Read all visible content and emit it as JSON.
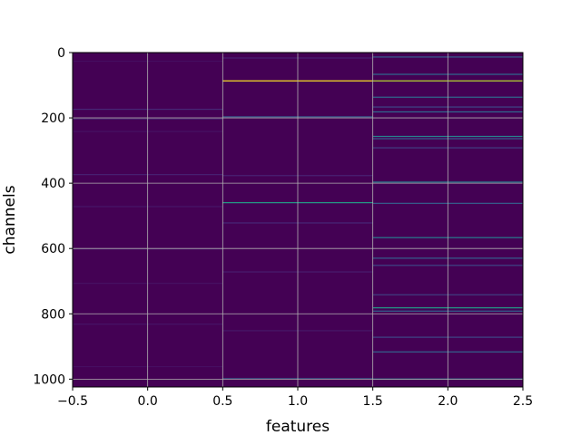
{
  "chart_data": {
    "type": "heatmap",
    "title": "",
    "xlabel": "features",
    "ylabel": "channels",
    "x_columns": [
      0,
      1,
      2
    ],
    "xlim": [
      -0.5,
      2.5
    ],
    "ylim": [
      1024,
      0
    ],
    "y_inverted": true,
    "n_rows": 1024,
    "xticks": [
      "−0.5",
      "0.0",
      "0.5",
      "1.0",
      "1.5",
      "2.0",
      "2.5"
    ],
    "xtick_values": [
      -0.5,
      0.0,
      0.5,
      1.0,
      1.5,
      2.0,
      2.5
    ],
    "yticks": [
      "0",
      "200",
      "400",
      "600",
      "800",
      "1000"
    ],
    "ytick_values": [
      0,
      200,
      400,
      600,
      800,
      1000
    ],
    "grid": true,
    "colormap": "viridis",
    "background_value": 0.0,
    "columns": [
      {
        "feature": 0,
        "highlights": [
          {
            "channel": 25,
            "value": 0.05
          },
          {
            "channel": 172,
            "value": 0.14
          },
          {
            "channel": 202,
            "value": 0.1
          },
          {
            "channel": 240,
            "value": 0.06
          },
          {
            "channel": 372,
            "value": 0.12
          },
          {
            "channel": 470,
            "value": 0.08
          },
          {
            "channel": 600,
            "value": 0.07
          },
          {
            "channel": 705,
            "value": 0.06
          },
          {
            "channel": 830,
            "value": 0.07
          },
          {
            "channel": 960,
            "value": 0.05
          }
        ]
      },
      {
        "feature": 1,
        "highlights": [
          {
            "channel": 15,
            "value": 0.12
          },
          {
            "channel": 85,
            "value": 1.0
          },
          {
            "channel": 195,
            "value": 0.28
          },
          {
            "channel": 375,
            "value": 0.12
          },
          {
            "channel": 458,
            "value": 0.55
          },
          {
            "channel": 520,
            "value": 0.14
          },
          {
            "channel": 670,
            "value": 0.1
          },
          {
            "channel": 850,
            "value": 0.08
          },
          {
            "channel": 997,
            "value": 0.3
          }
        ]
      },
      {
        "feature": 2,
        "highlights": [
          {
            "channel": 12,
            "value": 0.3
          },
          {
            "channel": 65,
            "value": 0.35
          },
          {
            "channel": 85,
            "value": 0.9
          },
          {
            "channel": 135,
            "value": 0.35
          },
          {
            "channel": 165,
            "value": 0.22
          },
          {
            "channel": 180,
            "value": 0.35
          },
          {
            "channel": 255,
            "value": 0.45
          },
          {
            "channel": 262,
            "value": 0.3
          },
          {
            "channel": 290,
            "value": 0.2
          },
          {
            "channel": 395,
            "value": 0.42
          },
          {
            "channel": 460,
            "value": 0.3
          },
          {
            "channel": 565,
            "value": 0.42
          },
          {
            "channel": 628,
            "value": 0.3
          },
          {
            "channel": 650,
            "value": 0.22
          },
          {
            "channel": 740,
            "value": 0.2
          },
          {
            "channel": 780,
            "value": 0.55
          },
          {
            "channel": 790,
            "value": 0.32
          },
          {
            "channel": 870,
            "value": 0.22
          },
          {
            "channel": 915,
            "value": 0.32
          },
          {
            "channel": 998,
            "value": 0.42
          }
        ]
      }
    ]
  }
}
